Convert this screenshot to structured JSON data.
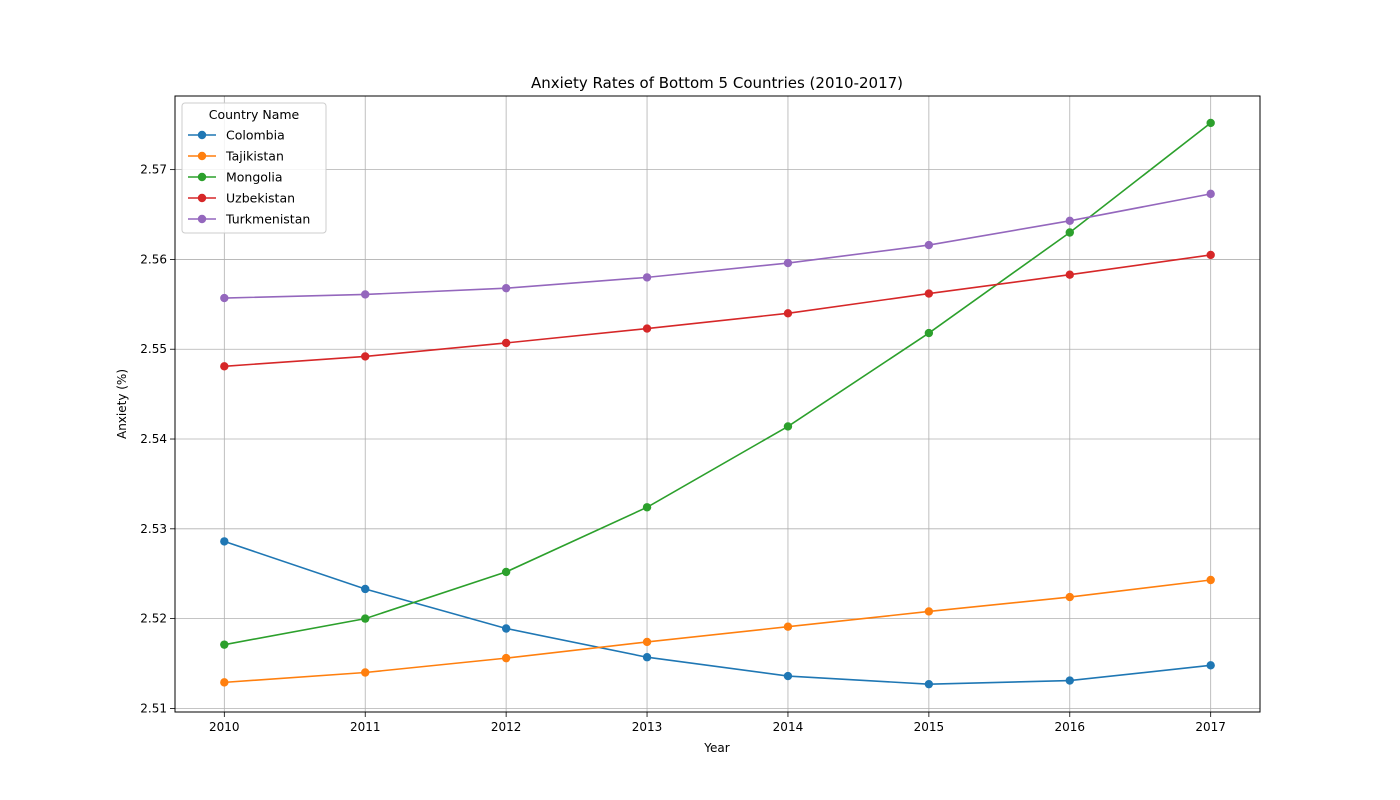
{
  "chart_data": {
    "type": "line",
    "title": "Anxiety Rates of Bottom 5 Countries (2010-2017)",
    "xlabel": "Year",
    "ylabel": "Anxiety (%)",
    "x": [
      2010,
      2011,
      2012,
      2013,
      2014,
      2015,
      2016,
      2017
    ],
    "x_tick_labels": [
      "2010",
      "2011",
      "2012",
      "2013",
      "2014",
      "2015",
      "2016",
      "2017"
    ],
    "xlim": [
      2009.65,
      2017.35
    ],
    "ylim": [
      2.5096,
      2.5782
    ],
    "y_ticks": [
      2.51,
      2.52,
      2.53,
      2.54,
      2.55,
      2.56,
      2.57
    ],
    "y_tick_labels": [
      "2.51",
      "2.52",
      "2.53",
      "2.54",
      "2.55",
      "2.56",
      "2.57"
    ],
    "grid": true,
    "legend": {
      "title": "Country Name",
      "placement": "top-left"
    },
    "series": [
      {
        "name": "Colombia",
        "color": "#1f77b4",
        "values": [
          2.5286,
          2.5233,
          2.5189,
          2.5157,
          2.5136,
          2.5127,
          2.5131,
          2.5148
        ]
      },
      {
        "name": "Tajikistan",
        "color": "#ff7f0e",
        "values": [
          2.5129,
          2.514,
          2.5156,
          2.5174,
          2.5191,
          2.5208,
          2.5224,
          2.5243
        ]
      },
      {
        "name": "Mongolia",
        "color": "#2ca02c",
        "values": [
          2.5171,
          2.52,
          2.5252,
          2.5324,
          2.5414,
          2.5518,
          2.563,
          2.5752
        ]
      },
      {
        "name": "Uzbekistan",
        "color": "#d62728",
        "values": [
          2.5481,
          2.5492,
          2.5507,
          2.5523,
          2.554,
          2.5562,
          2.5583,
          2.5605
        ]
      },
      {
        "name": "Turkmenistan",
        "color": "#9467bd",
        "values": [
          2.5557,
          2.5561,
          2.5568,
          2.558,
          2.5596,
          2.5616,
          2.5643,
          2.5673
        ]
      }
    ]
  }
}
